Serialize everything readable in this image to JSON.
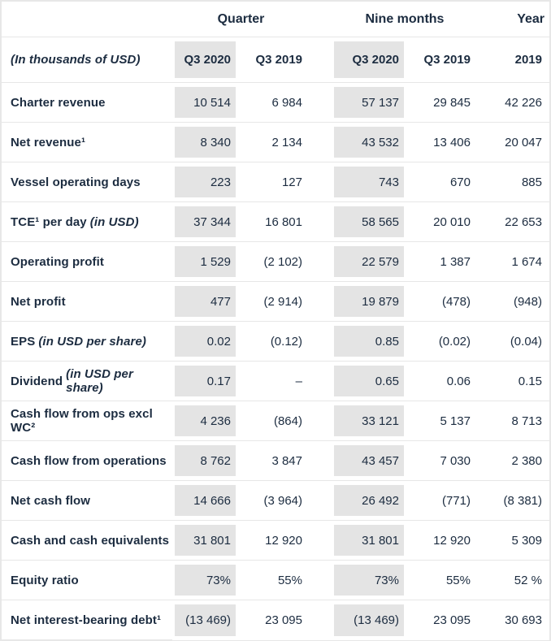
{
  "colors": {
    "text": "#1c2c40",
    "shaded_column_bg": "#e4e4e4",
    "row_border": "#e7e7e7",
    "background": "#ffffff"
  },
  "table": {
    "groups": [
      {
        "label": "Quarter",
        "span": 2
      },
      {
        "label": "Nine months",
        "span": 2
      },
      {
        "label": "Year",
        "span": 1
      }
    ],
    "unit_label": "(In thousands of USD)",
    "columns": [
      "Q3 2020",
      "Q3 2019",
      "Q3 2020",
      "Q3 2019",
      "2019"
    ],
    "highlighted_columns": [
      "Q3 2020",
      "Q3 2020"
    ],
    "rows": [
      {
        "label": "Charter revenue",
        "label_italic": "",
        "values": [
          "10 514",
          "6 984",
          "57 137",
          "29 845",
          "42 226"
        ]
      },
      {
        "label": "Net revenue¹",
        "label_italic": "",
        "values": [
          "8 340",
          "2 134",
          "43 532",
          "13 406",
          "20 047"
        ]
      },
      {
        "label": "Vessel operating days",
        "label_italic": "",
        "values": [
          "223",
          "127",
          "743",
          "670",
          "885"
        ]
      },
      {
        "label": "TCE¹ per day",
        "label_italic": "(in USD)",
        "values": [
          "37 344",
          "16 801",
          "58 565",
          "20 010",
          "22 653"
        ]
      },
      {
        "label": "Operating profit",
        "label_italic": "",
        "values": [
          "1 529",
          "(2 102)",
          "22 579",
          "1 387",
          "1 674"
        ]
      },
      {
        "label": "Net profit",
        "label_italic": "",
        "values": [
          "477",
          "(2 914)",
          "19 879",
          "(478)",
          "(948)"
        ]
      },
      {
        "label": "EPS",
        "label_italic": "(in USD per share)",
        "values": [
          "0.02",
          "(0.12)",
          "0.85",
          "(0.02)",
          "(0.04)"
        ]
      },
      {
        "label": "Dividend",
        "label_italic": "(in USD per share)",
        "values": [
          "0.17",
          "–",
          "0.65",
          "0.06",
          "0.15"
        ]
      },
      {
        "label": "Cash flow from ops excl WC²",
        "label_italic": "",
        "values": [
          "4 236",
          "(864)",
          "33 121",
          "5 137",
          "8 713"
        ]
      },
      {
        "label": "Cash flow from operations",
        "label_italic": "",
        "values": [
          "8 762",
          "3 847",
          "43 457",
          "7 030",
          "2 380"
        ]
      },
      {
        "label": "Net cash flow",
        "label_italic": "",
        "values": [
          "14 666",
          "(3 964)",
          "26 492",
          "(771)",
          "(8 381)"
        ]
      },
      {
        "label": "Cash and cash equivalents",
        "label_italic": "",
        "values": [
          "31 801",
          "12 920",
          "31 801",
          "12 920",
          "5 309"
        ]
      },
      {
        "label": "Equity ratio",
        "label_italic": "",
        "values": [
          "73%",
          "55%",
          "73%",
          "55%",
          "52 %"
        ]
      },
      {
        "label": "Net interest-bearing debt¹",
        "label_italic": "",
        "values": [
          "(13 469)",
          "23 095",
          "(13 469)",
          "23 095",
          "30 693"
        ]
      }
    ]
  }
}
